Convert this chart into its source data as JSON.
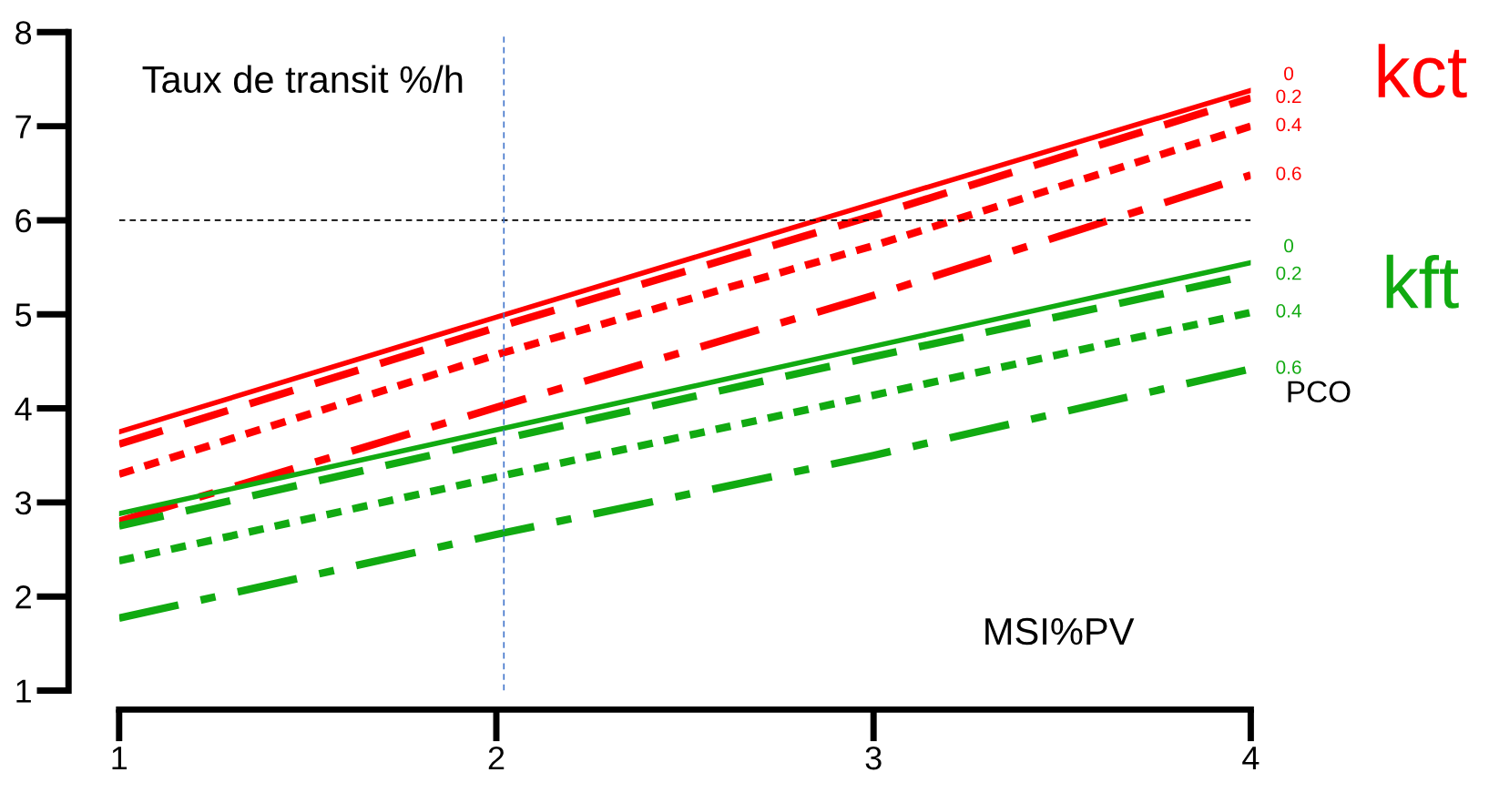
{
  "chart_data": {
    "type": "line",
    "title": "Taux de transit %/h",
    "xlabel": "MSI%PV",
    "x": [
      1,
      2,
      3,
      4
    ],
    "xlim": [
      1,
      4
    ],
    "xticks": [
      1,
      2,
      3,
      4
    ],
    "ylim": [
      1,
      8
    ],
    "yticks": [
      1,
      2,
      3,
      4,
      5,
      6,
      7,
      8
    ],
    "grid": false,
    "legend": false,
    "marker": "none",
    "series": [
      {
        "name": "0",
        "color": "#ff0000",
        "line_style": "solid",
        "values": [
          3.75,
          4.97,
          6.18,
          7.38
        ]
      },
      {
        "name": "0.2",
        "color": "#ff0000",
        "line_style": "dashed",
        "values": [
          3.62,
          4.86,
          6.05,
          7.3
        ]
      },
      {
        "name": "0.4",
        "color": "#ff0000",
        "line_style": "dotted",
        "values": [
          3.3,
          4.57,
          5.73,
          7.0
        ]
      },
      {
        "name": "0.6",
        "color": "#ff0000",
        "line_style": "dashdot",
        "values": [
          2.8,
          4.01,
          5.2,
          6.48
        ]
      },
      {
        "name": "0",
        "color": "#11aa11",
        "line_style": "solid",
        "values": [
          2.88,
          3.77,
          4.66,
          5.55
        ]
      },
      {
        "name": "0.2",
        "color": "#11aa11",
        "line_style": "dashed",
        "values": [
          2.75,
          3.66,
          4.55,
          5.42
        ]
      },
      {
        "name": "0.4",
        "color": "#11aa11",
        "line_style": "dotted",
        "values": [
          2.38,
          3.27,
          4.14,
          5.02
        ]
      },
      {
        "name": "0.6",
        "color": "#11aa11",
        "line_style": "dashdot",
        "values": [
          1.77,
          2.66,
          3.5,
          4.42
        ]
      }
    ],
    "ref_lines": [
      {
        "axis": "y",
        "value": 6,
        "color": "#000000",
        "line_style": "dashed"
      },
      {
        "axis": "x",
        "value": 2.02,
        "color": "#4477cc",
        "line_style": "dashed"
      }
    ],
    "annotations": [
      "kct",
      "kft",
      "PCO"
    ]
  }
}
